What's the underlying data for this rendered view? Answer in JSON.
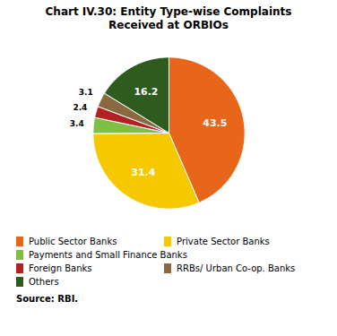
{
  "chart_data": {
    "type": "pie",
    "title": "Chart IV.30: Entity Type-wise Complaints\nReceived at ORBIOs",
    "categories": [
      "Public Sector Banks",
      "Private Sector Banks",
      "Payments and Small Finance Banks",
      "Foreign Banks",
      "RRBs/ Urban Co-op. Banks",
      "Others"
    ],
    "values": [
      43.5,
      31.4,
      3.4,
      2.4,
      3.1,
      16.2
    ],
    "colors": [
      "#E8661A",
      "#F5C800",
      "#7DC043",
      "#B22222",
      "#8B6940",
      "#2E5C1E"
    ],
    "data_labels": true,
    "legend": "bottom",
    "annotations": [
      "Source: RBI."
    ]
  }
}
